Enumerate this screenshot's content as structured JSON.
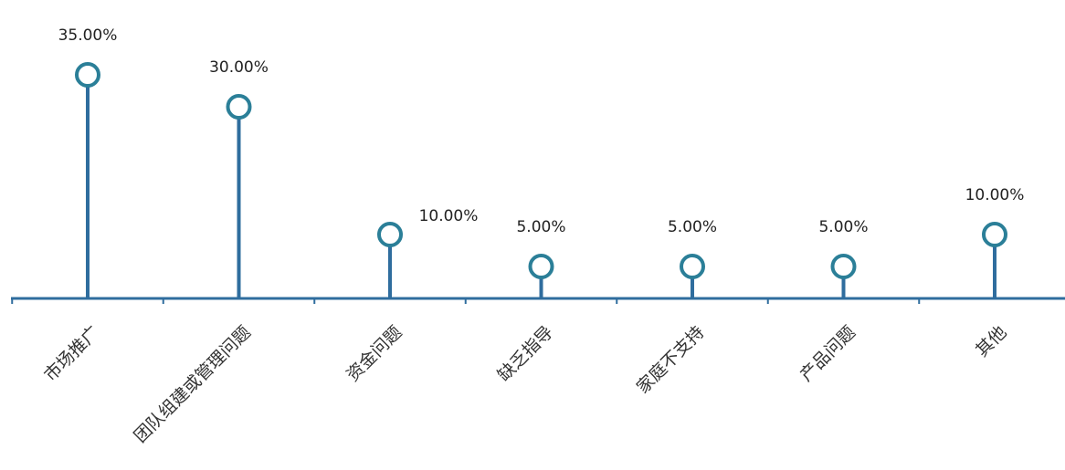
{
  "chart_data": {
    "type": "lollipop",
    "categories": [
      "市场推广",
      "团队组建或管理问题",
      "资金问题",
      "缺乏指导",
      "家庭不支持",
      "产品问题",
      "其他"
    ],
    "values": [
      35,
      30,
      10,
      5,
      5,
      5,
      10
    ],
    "value_labels": [
      "35.00%",
      "30.00%",
      "10.00%",
      "5.00%",
      "5.00%",
      "5.00%",
      "10.00%"
    ],
    "unit": "%",
    "ylim": [
      0,
      40
    ],
    "grid": false,
    "legend": "none",
    "colors": {
      "line": "#2f6d9e",
      "marker_stroke": "#2b7f98",
      "marker_fill": "#ffffff"
    }
  }
}
